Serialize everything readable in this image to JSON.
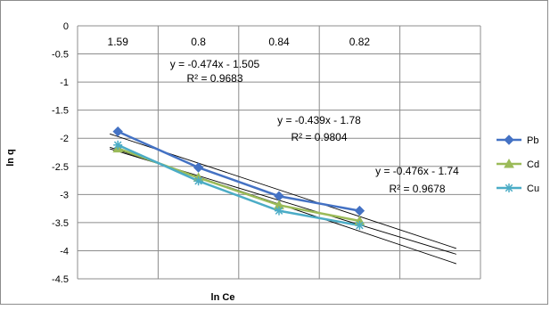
{
  "chart_data": {
    "type": "line",
    "title": "",
    "xlabel": "ln Ce",
    "ylabel": "ln q",
    "categories": [
      "1.59",
      "0.8",
      "0.84",
      "0.82"
    ],
    "ylim": [
      -4.5,
      0
    ],
    "yticks": [
      "0",
      "-0.5",
      "-1",
      "-1.5",
      "-2",
      "-2.5",
      "-3",
      "-3.5",
      "-4",
      "-4.5"
    ],
    "grid": true,
    "legend_position": "right",
    "series": [
      {
        "name": "Pb",
        "values": [
          -1.88,
          -2.52,
          -3.03,
          -3.29
        ],
        "color": "#4472C4",
        "marker": "diamond"
      },
      {
        "name": "Cd",
        "values": [
          -2.18,
          -2.7,
          -3.19,
          -3.47
        ],
        "color": "#9BBB59",
        "marker": "triangle"
      },
      {
        "name": "Cu",
        "values": [
          -2.12,
          -2.76,
          -3.29,
          -3.55
        ],
        "color": "#4BACC6",
        "marker": "star"
      }
    ],
    "trendlines": [
      {
        "equation": "y = -0.474x - 1.505",
        "r2": "R² = 0.9683"
      },
      {
        "equation": "y = -0.439x - 1.78",
        "r2": "R² = 0.9804"
      },
      {
        "equation": "y = -0.476x - 1.74",
        "r2": "R² = 0.9678"
      }
    ]
  }
}
